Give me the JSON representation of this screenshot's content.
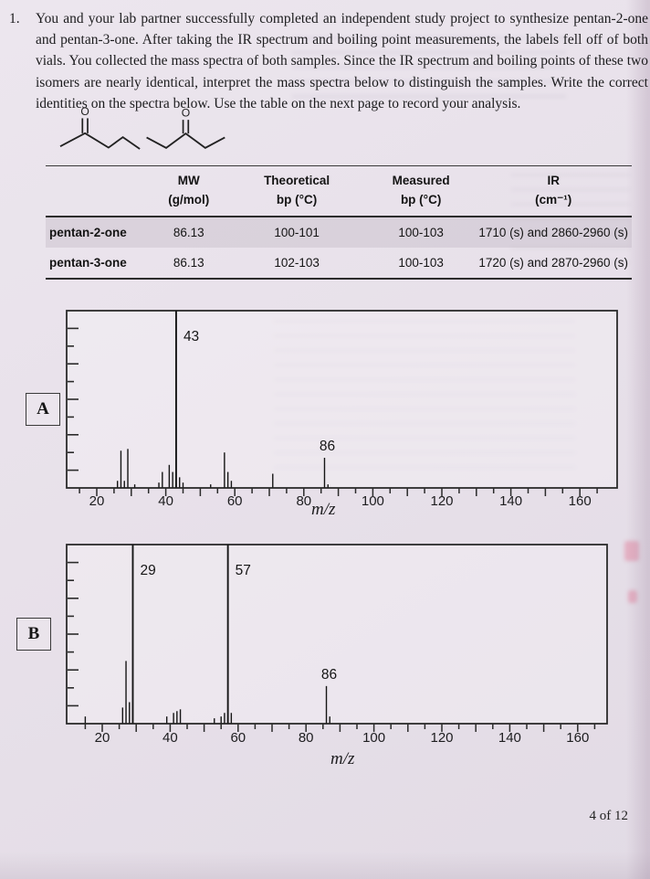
{
  "page": {
    "footer": "4 of 12"
  },
  "question": {
    "number": "1.",
    "text": "You and your lab partner successfully completed an independent study project to synthesize pentan-2-one and pentan-3-one. After taking the IR spectrum and boiling point measurements, the labels fell off of both vials. You collected the mass spectra of both samples. Since the IR spectrum and boiling points of these two isomers are nearly identical, interpret the mass spectra below to distinguish the samples. Write the correct identities on the spectra below. Use the table on the next page to record your analysis."
  },
  "structures": {
    "carbonyl_o_label": "O"
  },
  "table": {
    "headers": [
      {
        "line1": "",
        "line2": ""
      },
      {
        "line1": "MW",
        "line2": "(g/mol)"
      },
      {
        "line1": "Theoretical",
        "line2": "bp (°C)"
      },
      {
        "line1": "Measured",
        "line2": "bp (°C)"
      },
      {
        "line1": "IR",
        "line2": "(cm⁻¹)"
      }
    ],
    "rows": [
      {
        "name": "pentan-2-one",
        "mw": "86.13",
        "theoretical_bp": "100-101",
        "measured_bp": "100-103",
        "ir": "1710 (s) and 2860-2960 (s)"
      },
      {
        "name": "pentan-3-one",
        "mw": "86.13",
        "theoretical_bp": "102-103",
        "measured_bp": "100-103",
        "ir": "1720 (s) and 2870-2960 (s)"
      }
    ]
  },
  "chart_data": [
    {
      "id": "A",
      "label": "A",
      "type": "bar",
      "title": "Mass spectrum A",
      "xlabel": "m/z",
      "ylabel": "",
      "xlim": [
        12,
        170
      ],
      "ylim": [
        0,
        100
      ],
      "grid": false,
      "x_tick_labels": [
        20,
        40,
        60,
        80,
        100,
        120,
        140,
        160
      ],
      "x_tick_minor_step": 5,
      "peaks": [
        [
          26,
          4
        ],
        [
          27,
          21
        ],
        [
          28,
          4
        ],
        [
          29,
          22
        ],
        [
          31,
          2
        ],
        [
          38,
          3
        ],
        [
          39,
          9
        ],
        [
          41,
          13
        ],
        [
          42,
          9
        ],
        [
          43,
          100
        ],
        [
          44,
          6
        ],
        [
          45,
          3
        ],
        [
          53,
          2
        ],
        [
          57,
          20
        ],
        [
          58,
          9
        ],
        [
          59,
          4
        ],
        [
          71,
          8
        ],
        [
          86,
          17
        ],
        [
          87,
          2
        ]
      ],
      "annotations": [
        {
          "mz": 43,
          "text": "43"
        },
        {
          "mz": 86,
          "text": "86"
        }
      ]
    },
    {
      "id": "B",
      "label": "B",
      "type": "bar",
      "title": "Mass spectrum B",
      "xlabel": "m/z",
      "ylabel": "",
      "xlim": [
        12,
        169
      ],
      "ylim": [
        0,
        100
      ],
      "grid": false,
      "x_tick_labels": [
        20,
        40,
        60,
        80,
        100,
        120,
        140,
        160
      ],
      "x_tick_minor_step": 5,
      "peaks": [
        [
          15,
          4
        ],
        [
          26,
          9
        ],
        [
          27,
          35
        ],
        [
          28,
          12
        ],
        [
          29,
          100
        ],
        [
          39,
          4
        ],
        [
          41,
          6
        ],
        [
          42,
          7
        ],
        [
          43,
          8
        ],
        [
          53,
          3
        ],
        [
          55,
          4
        ],
        [
          56,
          6
        ],
        [
          57,
          100
        ],
        [
          58,
          6
        ],
        [
          86,
          21
        ],
        [
          87,
          4
        ]
      ],
      "annotations": [
        {
          "mz": 29,
          "text": "29"
        },
        {
          "mz": 57,
          "text": "57"
        },
        {
          "mz": 86,
          "text": "86"
        }
      ]
    }
  ]
}
